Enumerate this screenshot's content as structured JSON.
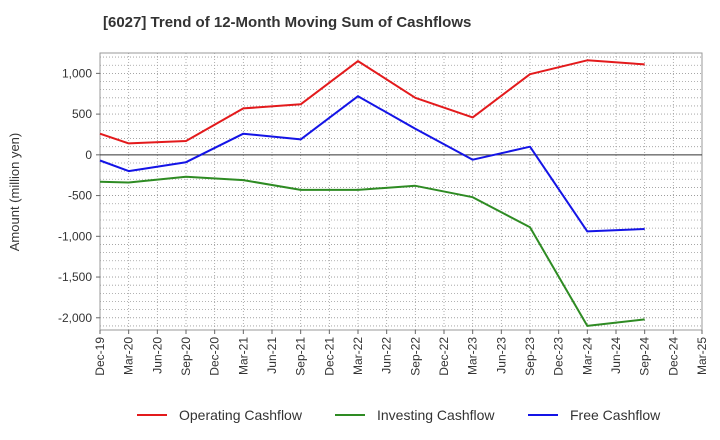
{
  "title": "[6027]  Trend of 12-Month Moving Sum of Cashflows",
  "chart_data": {
    "type": "line",
    "title": "[6027]  Trend of 12-Month Moving Sum of Cashflows",
    "xlabel": "",
    "ylabel": "Amount (million yen)",
    "ylim": [
      -2150,
      1250
    ],
    "yticks": [
      -2000,
      -1500,
      -1000,
      -500,
      0,
      500,
      1000
    ],
    "ytick_labels": [
      "-2,000",
      "-1,500",
      "-1,000",
      "-500",
      "0",
      "500",
      "1,000"
    ],
    "categories": [
      "Dec-19",
      "Mar-20",
      "Jun-20",
      "Sep-20",
      "Dec-20",
      "Mar-21",
      "Jun-21",
      "Sep-21",
      "Dec-21",
      "Mar-22",
      "Jun-22",
      "Sep-22",
      "Dec-22",
      "Mar-23",
      "Jun-23",
      "Sep-23",
      "Dec-23",
      "Mar-24",
      "Jun-24",
      "Sep-24",
      "Dec-24",
      "Mar-25"
    ],
    "grid": true,
    "legend_position": "bottom",
    "series": [
      {
        "name": "Operating Cashflow",
        "color": "#e31a1c",
        "values": [
          260,
          140,
          null,
          170,
          null,
          570,
          null,
          620,
          null,
          1150,
          null,
          700,
          null,
          460,
          null,
          990,
          null,
          1160,
          null,
          1110,
          null,
          null
        ]
      },
      {
        "name": "Investing Cashflow",
        "color": "#2e8b23",
        "values": [
          -330,
          -340,
          null,
          -270,
          null,
          -310,
          null,
          -430,
          null,
          -430,
          null,
          -380,
          null,
          -520,
          null,
          -890,
          null,
          -2100,
          null,
          -2020,
          null,
          null
        ]
      },
      {
        "name": "Free Cashflow",
        "color": "#1414e6",
        "values": [
          -70,
          -200,
          null,
          -90,
          null,
          260,
          null,
          190,
          null,
          720,
          null,
          320,
          null,
          -60,
          null,
          100,
          null,
          -940,
          null,
          -910,
          null,
          null
        ]
      }
    ]
  }
}
